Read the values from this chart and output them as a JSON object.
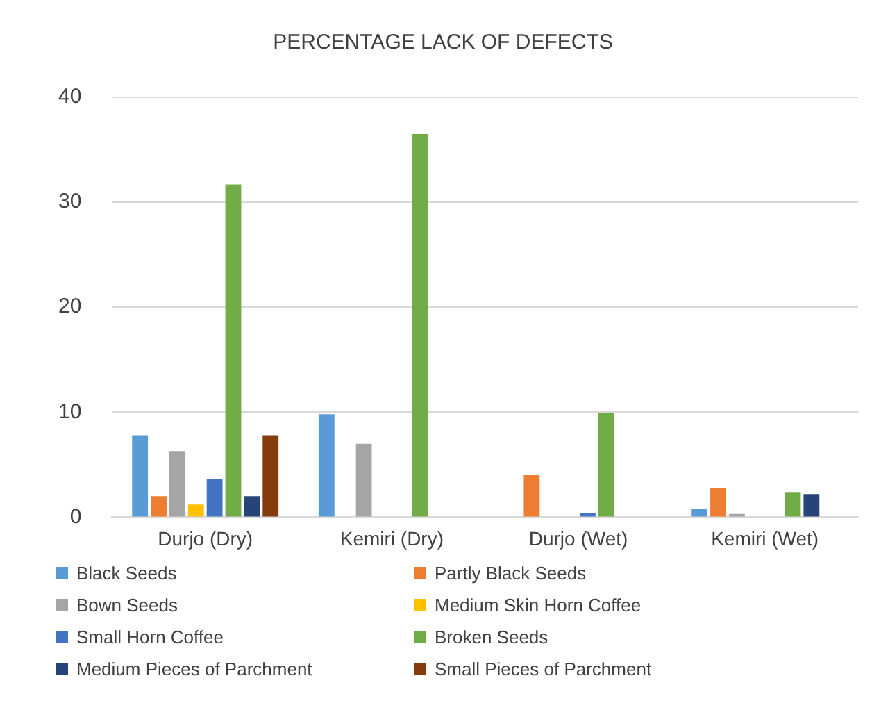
{
  "chart_data": {
    "type": "bar",
    "title": "PERCENTAGE LACK OF DEFECTS",
    "categories": [
      "Durjo (Dry)",
      "Kemiri (Dry)",
      "Durjo (Wet)",
      "Kemiri (Wet)"
    ],
    "series": [
      {
        "name": "Black Seeds",
        "color": "#5b9bd5",
        "values": [
          7.8,
          9.8,
          0,
          0.8
        ]
      },
      {
        "name": "Partly Black Seeds",
        "color": "#ed7d31",
        "values": [
          2,
          0,
          4,
          2.8
        ]
      },
      {
        "name": "Bown Seeds",
        "color": "#a5a5a5",
        "values": [
          6.3,
          7,
          0,
          0.3
        ]
      },
      {
        "name": "Medium Skin Horn Coffee",
        "color": "#ffc000",
        "values": [
          1.2,
          0,
          0,
          0
        ]
      },
      {
        "name": "Small Horn Coffee",
        "color": "#4472c4",
        "values": [
          3.6,
          0,
          0.4,
          0
        ]
      },
      {
        "name": "Broken Seeds",
        "color": "#70ad47",
        "values": [
          31.7,
          36.5,
          9.9,
          2.4
        ]
      },
      {
        "name": "Medium Pieces of Parchment",
        "color": "#264478",
        "values": [
          2,
          0,
          0,
          2.2
        ]
      },
      {
        "name": "Small Pieces of Parchment",
        "color": "#843c0c",
        "values": [
          7.8,
          0,
          0,
          0
        ]
      }
    ],
    "ylim": [
      0,
      40
    ],
    "yticks": [
      0,
      10,
      20,
      30,
      40
    ],
    "grid": "y",
    "legend": "bottom"
  }
}
